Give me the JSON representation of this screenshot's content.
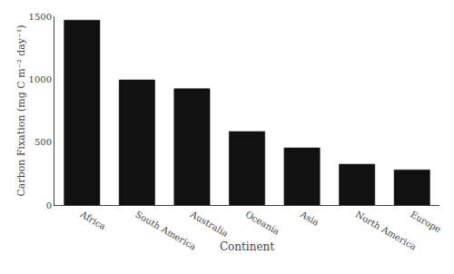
{
  "chart_data": {
    "type": "bar",
    "xlabel": "Continent",
    "ylabel": "Carbon Fixation (mg C m⁻² day⁻¹)",
    "categories": [
      "Africa",
      "South America",
      "Australia",
      "Oceania",
      "Asia",
      "North America",
      "Europe"
    ],
    "values": [
      1470,
      995,
      925,
      585,
      455,
      325,
      280
    ],
    "color": "#111111",
    "ylim": [
      0,
      1500
    ],
    "yticks": [
      0,
      500,
      1000,
      1500
    ],
    "grid": false
  }
}
